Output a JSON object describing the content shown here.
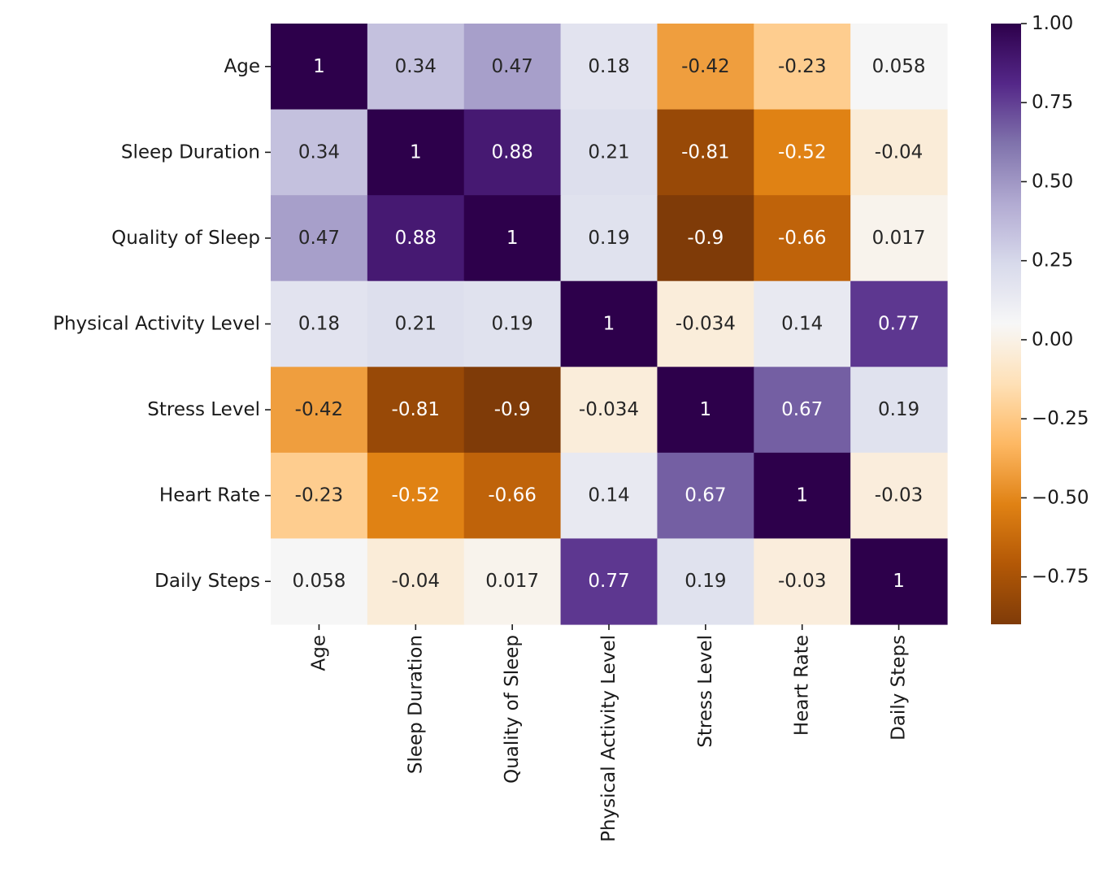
{
  "chart_data": {
    "type": "heatmap",
    "title": "",
    "xlabel": "",
    "ylabel": "",
    "labels": [
      "Age",
      "Sleep Duration",
      "Quality of Sleep",
      "Physical Activity Level",
      "Stress Level",
      "Heart Rate",
      "Daily Steps"
    ],
    "matrix": [
      [
        1,
        0.34,
        0.47,
        0.18,
        -0.42,
        -0.23,
        0.058
      ],
      [
        0.34,
        1,
        0.88,
        0.21,
        -0.81,
        -0.52,
        -0.04
      ],
      [
        0.47,
        0.88,
        1,
        0.19,
        -0.9,
        -0.66,
        0.017
      ],
      [
        0.18,
        0.21,
        0.19,
        1,
        -0.034,
        0.14,
        0.77
      ],
      [
        -0.42,
        -0.81,
        -0.9,
        -0.034,
        1,
        0.67,
        0.19
      ],
      [
        -0.23,
        -0.52,
        -0.66,
        0.14,
        0.67,
        1,
        -0.03
      ],
      [
        0.058,
        -0.04,
        0.017,
        0.77,
        0.19,
        -0.03,
        1
      ]
    ],
    "cell_labels": [
      [
        "1",
        "0.34",
        "0.47",
        "0.18",
        "-0.42",
        "-0.23",
        "0.058"
      ],
      [
        "0.34",
        "1",
        "0.88",
        "0.21",
        "-0.81",
        "-0.52",
        "-0.04"
      ],
      [
        "0.47",
        "0.88",
        "1",
        "0.19",
        "-0.9",
        "-0.66",
        "0.017"
      ],
      [
        "0.18",
        "0.21",
        "0.19",
        "1",
        "-0.034",
        "0.14",
        "0.77"
      ],
      [
        "-0.42",
        "-0.81",
        "-0.9",
        "-0.034",
        "1",
        "0.67",
        "0.19"
      ],
      [
        "-0.23",
        "-0.52",
        "-0.66",
        "0.14",
        "0.67",
        "1",
        "-0.03"
      ],
      [
        "0.058",
        "-0.04",
        "0.017",
        "0.77",
        "0.19",
        "-0.03",
        "1"
      ]
    ],
    "colormap": "PuOr",
    "vmin": -0.9,
    "vmax": 1.0,
    "colorbar": {
      "ticks": [
        1.0,
        0.75,
        0.5,
        0.25,
        0.0,
        -0.25,
        -0.5,
        -0.75
      ],
      "tick_labels": [
        "1.00",
        "0.75",
        "0.50",
        "0.25",
        "0.00",
        "−0.25",
        "−0.50",
        "−0.75"
      ]
    },
    "grid": false,
    "legend": "colorbar-right"
  }
}
